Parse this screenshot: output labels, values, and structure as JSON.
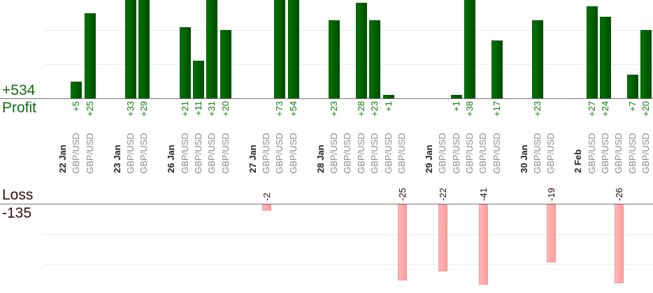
{
  "summary": {
    "profit_total": "+534",
    "profit_label": "Profit",
    "loss_label": "Loss",
    "loss_total": "-135"
  },
  "colors": {
    "profit": "#006600",
    "loss": "#ffaaaa",
    "profit_text": "#0a7a0a",
    "loss_text": "#3a0a0a"
  },
  "chart_data": {
    "type": "bar",
    "groups": [
      {
        "date": "22 Jan",
        "trades": [
          {
            "pair": "GBP/USD",
            "pnl": "+5"
          },
          {
            "pair": "GBP/USD",
            "pnl": "+25"
          }
        ]
      },
      {
        "date": "23 Jan",
        "trades": [
          {
            "pair": "GBP/USD",
            "pnl": "+33"
          },
          {
            "pair": "GBP/USD",
            "pnl": "+29"
          }
        ]
      },
      {
        "date": "26 Jan",
        "trades": [
          {
            "pair": "GBP/USD",
            "pnl": "+21"
          },
          {
            "pair": "GBP/USD",
            "pnl": "+11"
          },
          {
            "pair": "GBP/USD",
            "pnl": "+31"
          },
          {
            "pair": "GBP/USD",
            "pnl": "+20"
          }
        ]
      },
      {
        "date": "27 Jan",
        "trades": [
          {
            "pair": "GBP/USD",
            "pnl": "-2"
          },
          {
            "pair": "GBP/USD",
            "pnl": "+73"
          },
          {
            "pair": "GBP/USD",
            "pnl": "+54"
          }
        ]
      },
      {
        "date": "28 Jan",
        "trades": [
          {
            "pair": "GBP/USD",
            "pnl": "+23"
          },
          {
            "pair": "GBP/USD",
            "pnl": ""
          },
          {
            "pair": "GBP/USD",
            "pnl": "+28"
          },
          {
            "pair": "GBP/USD",
            "pnl": "+23"
          },
          {
            "pair": "GBP/USD",
            "pnl": "+1"
          },
          {
            "pair": "GBP/USD",
            "pnl": "-25"
          }
        ]
      },
      {
        "date": "29 Jan",
        "trades": [
          {
            "pair": "GBP/USD",
            "pnl": "-22"
          },
          {
            "pair": "GBP/USD",
            "pnl": "+1"
          },
          {
            "pair": "GBP/USD",
            "pnl": "+38"
          },
          {
            "pair": "GBP/USD",
            "pnl": "-41"
          },
          {
            "pair": "GBP/USD",
            "pnl": "+17"
          }
        ]
      },
      {
        "date": "30 Jan",
        "trades": [
          {
            "pair": "GBP/USD",
            "pnl": "+23"
          },
          {
            "pair": "GBP/USD",
            "pnl": "-19"
          }
        ]
      },
      {
        "date": "2 Feb",
        "trades": [
          {
            "pair": "GBP/USD",
            "pnl": "+27"
          },
          {
            "pair": "GBP/USD",
            "pnl": "+24"
          },
          {
            "pair": "GBP/USD",
            "pnl": "-26"
          },
          {
            "pair": "GBP/USD",
            "pnl": "+7"
          },
          {
            "pair": "GBP/USD",
            "pnl": "+20"
          }
        ]
      }
    ],
    "profit_grid_step": 10,
    "loss_grid_step": 10,
    "grid": true
  }
}
